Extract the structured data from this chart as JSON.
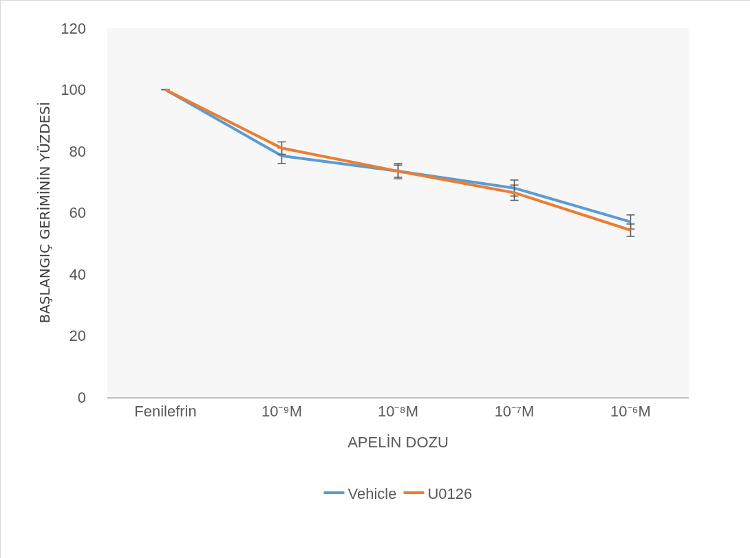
{
  "chart_data": {
    "type": "line",
    "xlabel": "APELİN DOZU",
    "ylabel": "BAŞLANGIÇ GERİMİNİN YÜZDESİ",
    "categories": [
      "Fenilefrin",
      "10⁻⁹M",
      "10⁻⁸M",
      "10⁻⁷M",
      "10⁻⁶M"
    ],
    "series": [
      {
        "name": "Vehicle",
        "color": "#5b9bd5",
        "values": [
          100,
          78.5,
          73.5,
          68,
          57
        ],
        "errors": [
          null,
          2.5,
          2.5,
          2.6,
          2.3
        ]
      },
      {
        "name": "U0126",
        "color": "#ed7d31",
        "values": [
          100,
          81,
          73.5,
          66.5,
          54.3
        ],
        "errors": [
          null,
          2,
          2,
          2.5,
          2
        ]
      }
    ],
    "ylim": [
      0,
      120
    ],
    "yticks": [
      0,
      20,
      40,
      60,
      80,
      100,
      120
    ],
    "grid": false,
    "legend": "bottom",
    "marker": "none",
    "line_style": "solid"
  }
}
